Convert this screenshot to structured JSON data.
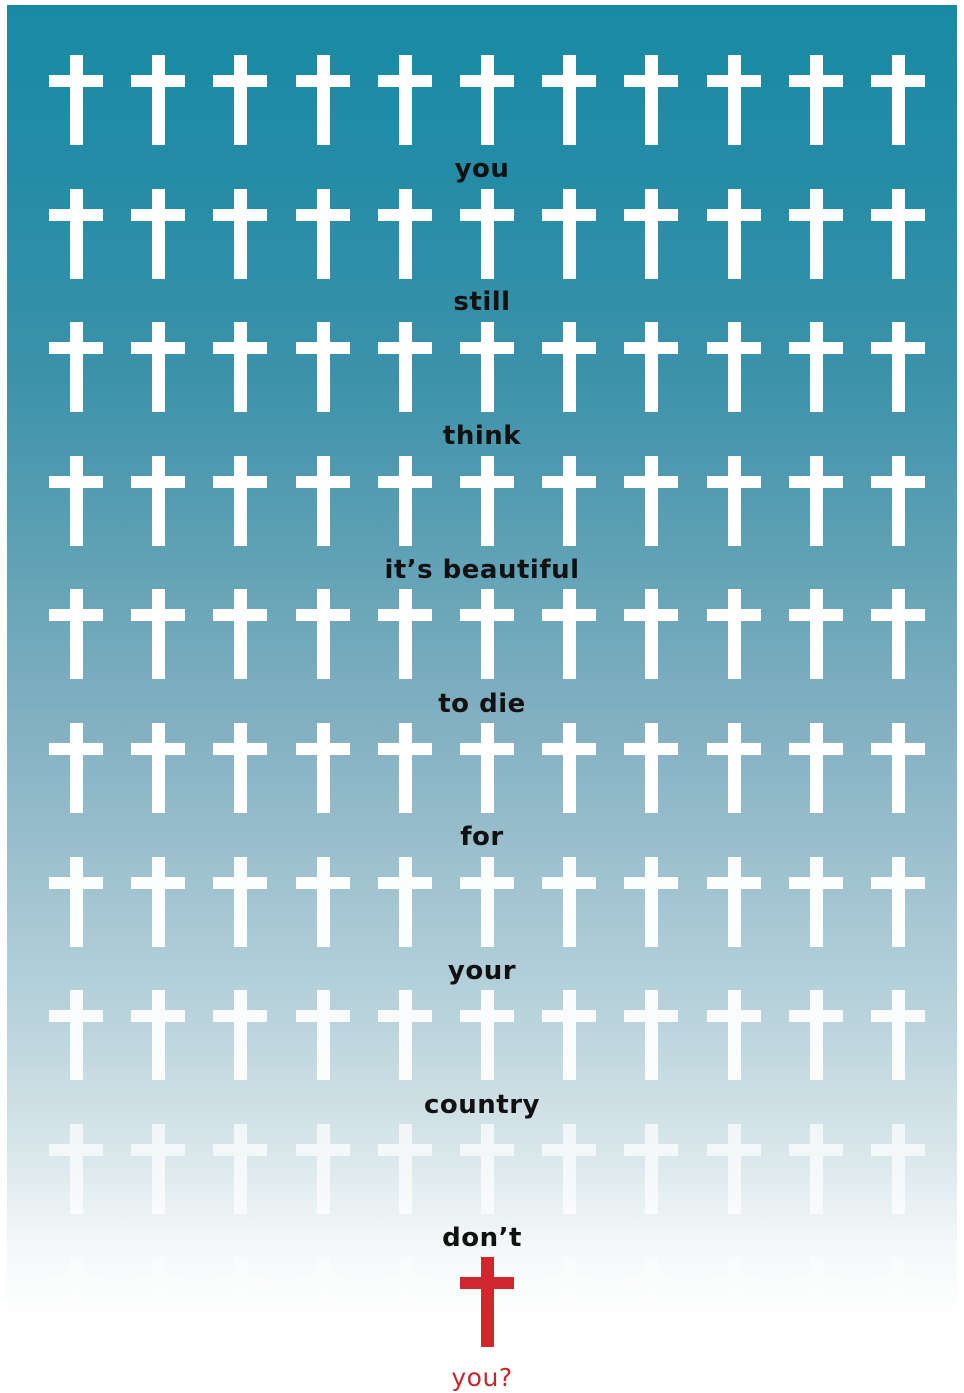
{
  "colors": {
    "background_top": "#1a8aa3",
    "background_bottom": "#ffffff",
    "cross": "#ffffff",
    "highlight_cross": "#d0262d",
    "text": "#111111",
    "highlight_text": "#c8242b"
  },
  "cross_grid": {
    "columns": 11,
    "rows": 10,
    "highlight": {
      "row": 10,
      "column": 6
    }
  },
  "phrase": {
    "words": [
      "you",
      "still",
      "think",
      "it’s beautiful",
      "to die",
      "for",
      "your",
      "country",
      "don’t"
    ],
    "final": "you?"
  }
}
